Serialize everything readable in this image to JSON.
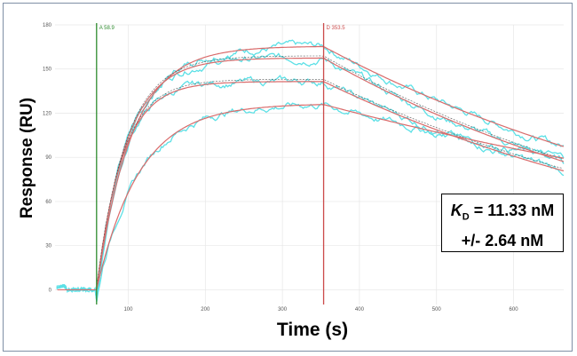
{
  "chart_data": {
    "type": "line",
    "xlabel": "Time (s)",
    "ylabel": "Response (RU)",
    "xlim": [
      5,
      665
    ],
    "ylim": [
      -10,
      180
    ],
    "x_ticks": [
      100,
      200,
      300,
      400,
      500,
      600
    ],
    "y_ticks": [
      0,
      30,
      60,
      90,
      120,
      150,
      180
    ],
    "markers": [
      {
        "label": "A 58.9",
        "x": 58.9,
        "color": "#2e8b2e"
      },
      {
        "label": "D 353.5",
        "x": 353.5,
        "color": "#cc4b4b"
      }
    ],
    "association_start": 58.9,
    "dissociation_start": 353.5,
    "x_end": 665,
    "curves": [
      {
        "rmax": 165.5,
        "k": 0.022,
        "koff": 0.0017
      },
      {
        "rmax": 157.5,
        "k": 0.026,
        "koff": 0.0019
      },
      {
        "rmax": 141.5,
        "k": 0.03,
        "koff": 0.0018
      },
      {
        "rmax": 126.5,
        "k": 0.018,
        "koff": 0.0011
      }
    ],
    "annotation": {
      "kd_symbol": "K",
      "kd_sub": "D",
      "kd_value": " = 11.33 nM",
      "error": "+/- 2.64 nM"
    },
    "colors": {
      "raw": "#5ce0e6",
      "fit": "#d96b6b",
      "association_line": "#2e8b2e",
      "dissociation_line": "#cc4b4b",
      "grid": "#e6e6e6"
    }
  }
}
